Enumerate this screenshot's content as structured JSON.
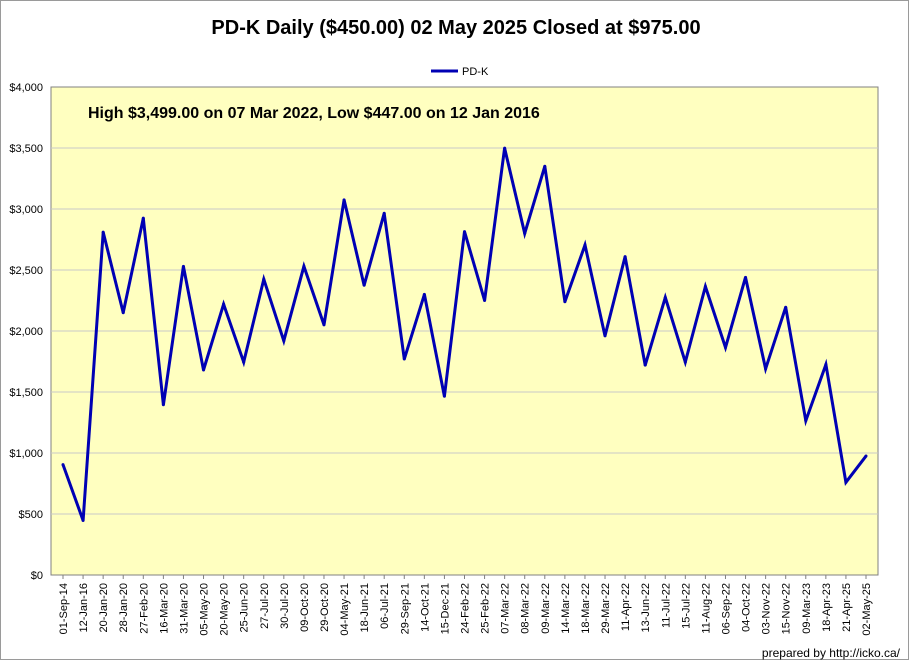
{
  "chart_data": {
    "type": "line",
    "title": "PD-K Daily ($450.00)  02 May 2025 Closed at $975.00",
    "annotation": "High $3,499.00 on 07 Mar 2022, Low $447.00 on 12 Jan 2016",
    "footer": "prepared by http://icko.ca/",
    "ylim": [
      0,
      4000
    ],
    "y_ticks": [
      {
        "value": 0,
        "label": "$0"
      },
      {
        "value": 500,
        "label": "$500"
      },
      {
        "value": 1000,
        "label": "$1,000"
      },
      {
        "value": 1500,
        "label": "$1,500"
      },
      {
        "value": 2000,
        "label": "$2,000"
      },
      {
        "value": 2500,
        "label": "$2,500"
      },
      {
        "value": 3000,
        "label": "$3,000"
      },
      {
        "value": 3500,
        "label": "$3,500"
      },
      {
        "value": 4000,
        "label": "$4,000"
      }
    ],
    "grid": true,
    "legend": "top-center",
    "colors": {
      "line": "#0000b4",
      "plot_bg": "#ffffc0",
      "grid": "#c8c8c8"
    },
    "categories": [
      "01-Sep-14",
      "12-Jan-16",
      "20-Jan-20",
      "28-Jan-20",
      "27-Feb-20",
      "16-Mar-20",
      "31-Mar-20",
      "05-May-20",
      "20-May-20",
      "25-Jun-20",
      "27-Jul-20",
      "30-Jul-20",
      "09-Oct-20",
      "29-Oct-20",
      "04-May-21",
      "18-Jun-21",
      "06-Jul-21",
      "29-Sep-21",
      "14-Oct-21",
      "15-Dec-21",
      "24-Feb-22",
      "25-Feb-22",
      "07-Mar-22",
      "08-Mar-22",
      "09-Mar-22",
      "14-Mar-22",
      "18-Mar-22",
      "29-Mar-22",
      "11-Apr-22",
      "13-Jun-22",
      "11-Jul-22",
      "15-Jul-22",
      "11-Aug-22",
      "06-Sep-22",
      "04-Oct-22",
      "03-Nov-22",
      "15-Nov-22",
      "09-Mar-23",
      "18-Apr-23",
      "21-Apr-25",
      "02-May-25"
    ],
    "series": [
      {
        "name": "PD-K",
        "values": [
          905,
          447,
          2810,
          2150,
          2925,
          1395,
          2530,
          1680,
          2220,
          1745,
          2425,
          1920,
          2530,
          2050,
          3075,
          2375,
          2965,
          1770,
          2300,
          1465,
          2815,
          2250,
          3499,
          2800,
          3350,
          2240,
          2705,
          1960,
          2610,
          1720,
          2275,
          1745,
          2365,
          1865,
          2440,
          1690,
          2195,
          1265,
          1725,
          760,
          975
        ]
      }
    ]
  }
}
